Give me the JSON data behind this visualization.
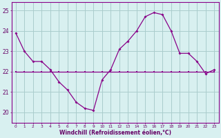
{
  "hours": [
    0,
    1,
    2,
    3,
    4,
    5,
    6,
    7,
    8,
    9,
    10,
    11,
    12,
    13,
    14,
    15,
    16,
    17,
    18,
    19,
    20,
    21,
    22,
    23
  ],
  "windchill": [
    23.9,
    23.0,
    22.5,
    22.5,
    22.1,
    21.5,
    21.1,
    20.5,
    20.2,
    20.1,
    21.6,
    22.1,
    23.1,
    23.5,
    24.0,
    24.7,
    24.9,
    24.8,
    24.0,
    22.9,
    22.9,
    22.5,
    21.9,
    22.1
  ],
  "smooth": [
    22.0,
    22.0,
    22.0,
    22.0,
    22.0,
    22.0,
    22.0,
    22.0,
    22.0,
    22.0,
    22.0,
    22.0,
    22.0,
    22.0,
    22.0,
    22.0,
    22.0,
    22.0,
    22.0,
    22.0,
    22.0,
    22.0,
    22.0,
    22.0
  ],
  "line_color": "#880088",
  "bg_color": "#d8f0f0",
  "grid_color": "#aacccc",
  "text_color": "#660066",
  "ylabel_vals": [
    20,
    21,
    22,
    23,
    24,
    25
  ],
  "xlabel": "Windchill (Refroidissement éolien,°C)",
  "ylim": [
    19.5,
    25.4
  ],
  "xlim": [
    -0.5,
    23.5
  ]
}
